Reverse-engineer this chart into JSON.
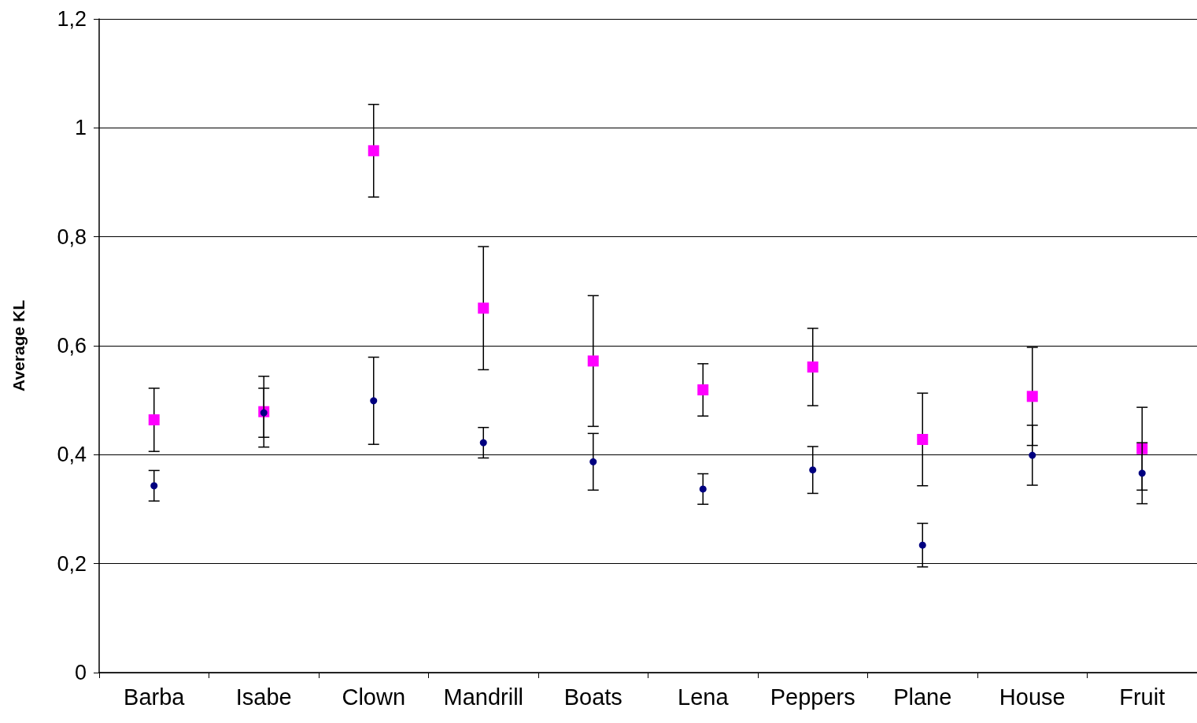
{
  "chart_data": {
    "type": "scatter",
    "ylabel": "Average KL",
    "categories": [
      "Barba",
      "Isabe",
      "Clown",
      "Mandrill",
      "Boats",
      "Lena",
      "Peppers",
      "Plane",
      "House",
      "Fruit"
    ],
    "series": [
      {
        "color": "#ff00ff",
        "marker": "square",
        "values": [
          0.464,
          0.479,
          0.958,
          0.669,
          0.572,
          0.519,
          0.561,
          0.428,
          0.507,
          0.411
        ],
        "errors": [
          0.058,
          0.065,
          0.085,
          0.113,
          0.12,
          0.048,
          0.071,
          0.085,
          0.09,
          0.076
        ]
      },
      {
        "color": "#000080",
        "marker": "circle",
        "values": [
          0.343,
          0.477,
          0.499,
          0.422,
          0.387,
          0.337,
          0.372,
          0.234,
          0.399,
          0.366
        ],
        "errors": [
          0.028,
          0.045,
          0.08,
          0.028,
          0.052,
          0.028,
          0.043,
          0.04,
          0.055,
          0.056
        ]
      }
    ],
    "ylim": [
      0,
      1.2
    ],
    "yticks": [
      0,
      {
        "value": 0.2,
        "label": "0,2"
      },
      {
        "value": 0.4,
        "label": "0,4"
      },
      {
        "value": 0.6,
        "label": "0,6"
      },
      {
        "value": 0.8,
        "label": "0,8"
      },
      1,
      {
        "value": 1.2,
        "label": "1,2"
      }
    ],
    "grid": "y"
  }
}
